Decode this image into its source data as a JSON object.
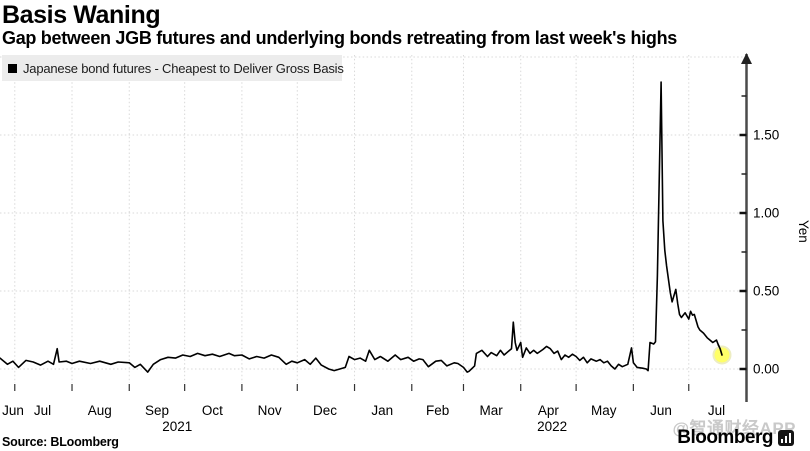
{
  "header": {
    "title": "Basis Waning",
    "subtitle": "Gap between JGB futures and underlying bonds retreating from last week's highs"
  },
  "legend": {
    "label": "Japanese bond futures - Cheapest to Deliver Gross Basis",
    "marker_color": "#000000"
  },
  "footer": {
    "source_label": "Source: BLoomberg",
    "watermark_label": "@智通财经APP",
    "brand_label": "Bloomberg",
    "brand_icon": "bar-chart-icon"
  },
  "chart_data": {
    "type": "line",
    "title": "Basis Waning",
    "subtitle": "Gap between JGB futures and underlying bonds retreating from last week's highs",
    "series_name": "Japanese bond futures - Cheapest to Deliver Gross Basis",
    "ylabel": "Yen",
    "line_color": "#000000",
    "grid_on": true,
    "legend_position": "top-left",
    "axis_color": "#4a4a4a",
    "grid_color": "#d9d9d9",
    "x_domain": [
      "2021-06-23",
      "2022-08-01"
    ],
    "ylim": [
      -0.08,
      2.0
    ],
    "y_ticks": [
      {
        "label": "0.00",
        "value": 0
      },
      {
        "label": "0.50",
        "value": 0.5
      },
      {
        "label": "1.00",
        "value": 1
      },
      {
        "label": "1.50",
        "value": 1.5
      }
    ],
    "y_minor_ticks": [
      0.25,
      0.75,
      1.25,
      1.75
    ],
    "y_gridlines": [
      0,
      0.5,
      1,
      1.5,
      2
    ],
    "x_gridline_dates": [
      "2021-07-01",
      "2021-08-01",
      "2021-09-01",
      "2021-10-01",
      "2021-11-01",
      "2021-12-01",
      "2022-01-01",
      "2022-02-01",
      "2022-03-01",
      "2022-04-01",
      "2022-05-01",
      "2022-06-01",
      "2022-07-01"
    ],
    "x_month_ticks": [
      {
        "label": "Jun",
        "date": "2021-06-30"
      },
      {
        "label": "Jul",
        "date": "2021-07-16"
      },
      {
        "label": "Aug",
        "date": "2021-08-16"
      },
      {
        "label": "Sep",
        "date": "2021-09-16"
      },
      {
        "label": "Oct",
        "date": "2021-10-16"
      },
      {
        "label": "Nov",
        "date": "2021-11-16"
      },
      {
        "label": "Dec",
        "date": "2021-12-16"
      },
      {
        "label": "Jan",
        "date": "2022-01-16"
      },
      {
        "label": "Feb",
        "date": "2022-02-15"
      },
      {
        "label": "Mar",
        "date": "2022-03-16"
      },
      {
        "label": "Apr",
        "date": "2022-04-16"
      },
      {
        "label": "May",
        "date": "2022-05-16"
      },
      {
        "label": "Jun",
        "date": "2022-06-16"
      },
      {
        "label": "Jul",
        "date": "2022-07-16"
      }
    ],
    "x_year_ticks": [
      {
        "label": "2021",
        "date": "2021-09-27"
      },
      {
        "label": "2022",
        "date": "2022-04-18"
      }
    ],
    "end_marker": {
      "date": "2022-07-19",
      "value": 0.09,
      "color": "#ffff42",
      "border_color": "#ededc2"
    },
    "points": [
      [
        "2021-06-23",
        0.07
      ],
      [
        "2021-06-27",
        0.03
      ],
      [
        "2021-06-30",
        0.05
      ],
      [
        "2021-07-03",
        0.01
      ],
      [
        "2021-07-07",
        0.055
      ],
      [
        "2021-07-11",
        0.045
      ],
      [
        "2021-07-15",
        0.025
      ],
      [
        "2021-07-19",
        0.05
      ],
      [
        "2021-07-22",
        0.03
      ],
      [
        "2021-07-24",
        0.13
      ],
      [
        "2021-07-25",
        0.045
      ],
      [
        "2021-07-29",
        0.05
      ],
      [
        "2021-08-01",
        0.035
      ],
      [
        "2021-08-05",
        0.05
      ],
      [
        "2021-08-11",
        0.035
      ],
      [
        "2021-08-16",
        0.05
      ],
      [
        "2021-08-22",
        0.03
      ],
      [
        "2021-08-26",
        0.045
      ],
      [
        "2021-09-01",
        0.04
      ],
      [
        "2021-09-04",
        0.01
      ],
      [
        "2021-09-07",
        0.03
      ],
      [
        "2021-09-11",
        -0.02
      ],
      [
        "2021-09-14",
        0.03
      ],
      [
        "2021-09-18",
        0.06
      ],
      [
        "2021-09-22",
        0.075
      ],
      [
        "2021-09-26",
        0.07
      ],
      [
        "2021-09-30",
        0.09
      ],
      [
        "2021-10-04",
        0.08
      ],
      [
        "2021-10-08",
        0.1
      ],
      [
        "2021-10-12",
        0.085
      ],
      [
        "2021-10-16",
        0.095
      ],
      [
        "2021-10-20",
        0.08
      ],
      [
        "2021-10-25",
        0.1
      ],
      [
        "2021-10-28",
        0.085
      ],
      [
        "2021-11-01",
        0.09
      ],
      [
        "2021-11-05",
        0.065
      ],
      [
        "2021-11-09",
        0.08
      ],
      [
        "2021-11-13",
        0.07
      ],
      [
        "2021-11-17",
        0.09
      ],
      [
        "2021-11-21",
        0.075
      ],
      [
        "2021-11-25",
        0.03
      ],
      [
        "2021-11-28",
        0.05
      ],
      [
        "2021-12-01",
        0.04
      ],
      [
        "2021-12-05",
        0.06
      ],
      [
        "2021-12-08",
        0.03
      ],
      [
        "2021-12-11",
        0.07
      ],
      [
        "2021-12-14",
        0.025
      ],
      [
        "2021-12-18",
        0.0
      ],
      [
        "2021-12-21",
        -0.01
      ],
      [
        "2021-12-24",
        0.0
      ],
      [
        "2021-12-27",
        0.01
      ],
      [
        "2021-12-29",
        0.08
      ],
      [
        "2022-01-01",
        0.06
      ],
      [
        "2022-01-04",
        0.07
      ],
      [
        "2022-01-07",
        0.05
      ],
      [
        "2022-01-09",
        0.12
      ],
      [
        "2022-01-12",
        0.06
      ],
      [
        "2022-01-15",
        0.08
      ],
      [
        "2022-01-19",
        0.05
      ],
      [
        "2022-01-23",
        0.09
      ],
      [
        "2022-01-26",
        0.06
      ],
      [
        "2022-01-30",
        0.075
      ],
      [
        "2022-02-02",
        0.05
      ],
      [
        "2022-02-05",
        0.065
      ],
      [
        "2022-02-07",
        0.06
      ],
      [
        "2022-02-10",
        0.015
      ],
      [
        "2022-02-14",
        0.05
      ],
      [
        "2022-02-17",
        0.055
      ],
      [
        "2022-02-20",
        0.02
      ],
      [
        "2022-02-24",
        0.04
      ],
      [
        "2022-02-26",
        0.035
      ],
      [
        "2022-03-01",
        0.01
      ],
      [
        "2022-03-03",
        -0.02
      ],
      [
        "2022-03-04",
        -0.015
      ],
      [
        "2022-03-07",
        0.02
      ],
      [
        "2022-03-08",
        0.1
      ],
      [
        "2022-03-11",
        0.12
      ],
      [
        "2022-03-14",
        0.08
      ],
      [
        "2022-03-16",
        0.105
      ],
      [
        "2022-03-19",
        0.085
      ],
      [
        "2022-03-21",
        0.12
      ],
      [
        "2022-03-23",
        0.09
      ],
      [
        "2022-03-25",
        0.11
      ],
      [
        "2022-03-27",
        0.13
      ],
      [
        "2022-03-28",
        0.3
      ],
      [
        "2022-03-29",
        0.17
      ],
      [
        "2022-03-30",
        0.12
      ],
      [
        "2022-04-01",
        0.17
      ],
      [
        "2022-04-02",
        0.075
      ],
      [
        "2022-04-04",
        0.135
      ],
      [
        "2022-04-06",
        0.1
      ],
      [
        "2022-04-08",
        0.12
      ],
      [
        "2022-04-10",
        0.1
      ],
      [
        "2022-04-13",
        0.125
      ],
      [
        "2022-04-15",
        0.145
      ],
      [
        "2022-04-17",
        0.13
      ],
      [
        "2022-04-19",
        0.1
      ],
      [
        "2022-04-21",
        0.115
      ],
      [
        "2022-04-23",
        0.06
      ],
      [
        "2022-04-25",
        0.09
      ],
      [
        "2022-04-27",
        0.075
      ],
      [
        "2022-04-29",
        0.095
      ],
      [
        "2022-05-01",
        0.08
      ],
      [
        "2022-05-03",
        0.055
      ],
      [
        "2022-05-05",
        0.075
      ],
      [
        "2022-05-07",
        0.04
      ],
      [
        "2022-05-09",
        0.065
      ],
      [
        "2022-05-12",
        0.05
      ],
      [
        "2022-05-14",
        0.06
      ],
      [
        "2022-05-16",
        0.04
      ],
      [
        "2022-05-18",
        0.05
      ],
      [
        "2022-05-20",
        0.02
      ],
      [
        "2022-05-22",
        0.0
      ],
      [
        "2022-05-24",
        0.03
      ],
      [
        "2022-05-26",
        0.015
      ],
      [
        "2022-05-29",
        0.03
      ],
      [
        "2022-05-31",
        0.135
      ],
      [
        "2022-06-01",
        0.04
      ],
      [
        "2022-06-03",
        0.01
      ],
      [
        "2022-06-06",
        0.005
      ],
      [
        "2022-06-08",
        0.0
      ],
      [
        "2022-06-09",
        -0.01
      ],
      [
        "2022-06-10",
        0.17
      ],
      [
        "2022-06-12",
        0.16
      ],
      [
        "2022-06-13",
        0.175
      ],
      [
        "2022-06-14",
        0.6
      ],
      [
        "2022-06-16",
        1.84
      ],
      [
        "2022-06-17",
        0.95
      ],
      [
        "2022-06-18",
        0.76
      ],
      [
        "2022-06-19",
        0.66
      ],
      [
        "2022-06-21",
        0.49
      ],
      [
        "2022-06-22",
        0.43
      ],
      [
        "2022-06-24",
        0.51
      ],
      [
        "2022-06-25",
        0.42
      ],
      [
        "2022-06-26",
        0.35
      ],
      [
        "2022-06-27",
        0.33
      ],
      [
        "2022-06-29",
        0.36
      ],
      [
        "2022-07-01",
        0.32
      ],
      [
        "2022-07-02",
        0.37
      ],
      [
        "2022-07-03",
        0.345
      ],
      [
        "2022-07-04",
        0.35
      ],
      [
        "2022-07-06",
        0.27
      ],
      [
        "2022-07-07",
        0.25
      ],
      [
        "2022-07-09",
        0.23
      ],
      [
        "2022-07-11",
        0.2
      ],
      [
        "2022-07-12",
        0.19
      ],
      [
        "2022-07-14",
        0.17
      ],
      [
        "2022-07-16",
        0.185
      ],
      [
        "2022-07-17",
        0.155
      ],
      [
        "2022-07-18",
        0.13
      ],
      [
        "2022-07-19",
        0.09
      ]
    ]
  }
}
